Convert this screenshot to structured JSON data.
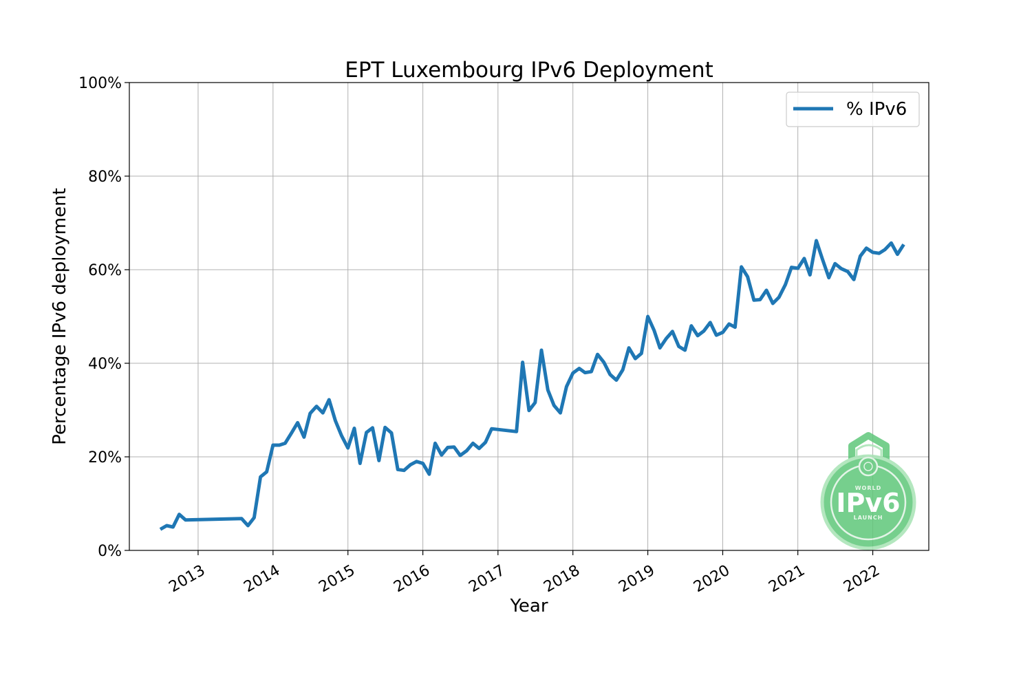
{
  "chart_data": {
    "type": "line",
    "title": "EPT Luxembourg IPv6 Deployment",
    "xlabel": "Year",
    "ylabel": "Percentage IPv6 deployment",
    "ylim": [
      0,
      100
    ],
    "xlim": [
      "2012-02-01",
      "2022-10-01"
    ],
    "y_ticks": [
      "0%",
      "20%",
      "40%",
      "60%",
      "80%",
      "100%"
    ],
    "x_ticks": [
      "2013",
      "2014",
      "2015",
      "2016",
      "2017",
      "2018",
      "2019",
      "2020",
      "2021",
      "2022"
    ],
    "grid": true,
    "legend_position": "top-right",
    "series": [
      {
        "name": "% IPv6",
        "color": "#1f77b4",
        "x": [
          "2012-07-01",
          "2012-08-01",
          "2012-09-01",
          "2012-10-01",
          "2012-11-01",
          "2013-08-01",
          "2013-09-01",
          "2013-10-01",
          "2013-11-01",
          "2013-12-01",
          "2014-01-01",
          "2014-02-01",
          "2014-03-01",
          "2014-04-01",
          "2014-05-01",
          "2014-06-01",
          "2014-07-01",
          "2014-08-01",
          "2014-09-01",
          "2014-10-01",
          "2014-11-01",
          "2014-12-01",
          "2015-01-01",
          "2015-02-01",
          "2015-03-01",
          "2015-04-01",
          "2015-05-01",
          "2015-06-01",
          "2015-07-01",
          "2015-08-01",
          "2015-09-01",
          "2015-10-01",
          "2015-11-01",
          "2015-12-01",
          "2016-01-01",
          "2016-02-01",
          "2016-03-01",
          "2016-04-01",
          "2016-05-01",
          "2016-06-01",
          "2016-07-01",
          "2016-08-01",
          "2016-09-01",
          "2016-10-01",
          "2016-11-01",
          "2016-12-01",
          "2017-04-01",
          "2017-05-01",
          "2017-06-01",
          "2017-07-01",
          "2017-08-01",
          "2017-09-01",
          "2017-10-01",
          "2017-11-01",
          "2017-12-01",
          "2018-01-01",
          "2018-02-01",
          "2018-03-01",
          "2018-04-01",
          "2018-05-01",
          "2018-06-01",
          "2018-07-01",
          "2018-08-01",
          "2018-09-01",
          "2018-10-01",
          "2018-11-01",
          "2018-12-01",
          "2019-01-01",
          "2019-02-01",
          "2019-03-01",
          "2019-04-01",
          "2019-05-01",
          "2019-06-01",
          "2019-07-01",
          "2019-08-01",
          "2019-09-01",
          "2019-10-01",
          "2019-11-01",
          "2019-12-01",
          "2020-01-01",
          "2020-02-01",
          "2020-03-01",
          "2020-04-01",
          "2020-05-01",
          "2020-06-01",
          "2020-07-01",
          "2020-08-01",
          "2020-09-01",
          "2020-10-01",
          "2020-11-01",
          "2020-12-01",
          "2021-01-01",
          "2021-02-01",
          "2021-03-01",
          "2021-04-01",
          "2021-05-01",
          "2021-06-01",
          "2021-07-01",
          "2021-08-01",
          "2021-09-01",
          "2021-10-01",
          "2021-11-01",
          "2021-12-01",
          "2022-01-01",
          "2022-02-01",
          "2022-03-01",
          "2022-04-01",
          "2022-05-01",
          "2022-06-01"
        ],
        "y": [
          4.5,
          5.3,
          5.0,
          7.7,
          6.5,
          6.8,
          5.3,
          7.0,
          15.7,
          16.8,
          22.5,
          22.5,
          22.9,
          25.1,
          27.3,
          24.2,
          29.3,
          30.8,
          29.4,
          32.2,
          27.7,
          24.5,
          21.9,
          26.1,
          18.6,
          25.2,
          26.2,
          19.2,
          26.3,
          25.1,
          17.3,
          17.1,
          18.3,
          19.0,
          18.6,
          16.3,
          22.9,
          20.4,
          22.0,
          22.1,
          20.3,
          21.3,
          22.9,
          21.8,
          23.1,
          26.0,
          25.4,
          40.2,
          29.9,
          31.6,
          42.8,
          34.3,
          31.0,
          29.4,
          35.0,
          37.9,
          38.9,
          38.0,
          38.2,
          41.9,
          40.2,
          37.6,
          36.4,
          38.6,
          43.3,
          41.0,
          42.1,
          50.0,
          47.0,
          43.3,
          45.3,
          46.8,
          43.6,
          42.8,
          48.0,
          45.9,
          46.9,
          48.7,
          46.0,
          46.6,
          48.4,
          47.7,
          60.6,
          58.5,
          53.5,
          53.6,
          55.6,
          52.8,
          54.1,
          56.8,
          60.5,
          60.3,
          62.4,
          58.9,
          66.2,
          62.2,
          58.3,
          61.3,
          60.2,
          59.6,
          57.9,
          62.9,
          64.6,
          63.7,
          63.5,
          64.3,
          65.7,
          63.3,
          65.4
        ]
      }
    ]
  },
  "logo": {
    "top_text": "WORLD",
    "main_text": "IPv6",
    "bottom_text": "LAUNCH",
    "color": "#5fc77a"
  }
}
